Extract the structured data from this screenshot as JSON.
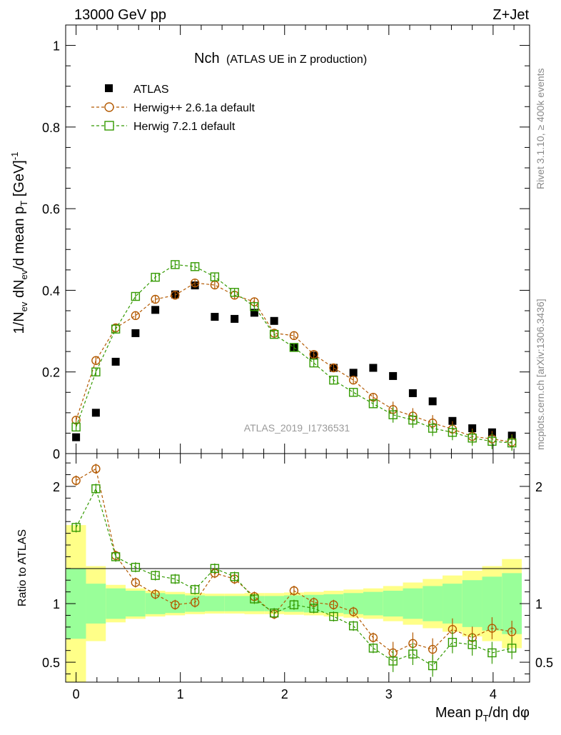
{
  "header": {
    "left": "13000 GeV pp",
    "right": "Z+Jet"
  },
  "side_texts": {
    "rivet": "Rivet 3.1.10, ≥ 400k events",
    "mcplots": "mcplots.cern.ch [arXiv:1306.3436]"
  },
  "chart_data": [
    {
      "type": "scatter",
      "panel": "main",
      "title_main": "Nch",
      "title_sub": "(ATLAS UE in Z production)",
      "ylabel_parts": [
        "1/N",
        "ev",
        " dN",
        "ev",
        "/d mean p",
        "T",
        " [GeV]",
        "-1"
      ],
      "ylim": [
        0,
        1.05
      ],
      "yticks": [
        "0",
        "0.2",
        "0.4",
        "0.6",
        "0.8",
        "1"
      ],
      "xlim": [
        -0.1,
        4.35
      ],
      "x": [
        0.0,
        0.19,
        0.38,
        0.57,
        0.76,
        0.95,
        1.14,
        1.33,
        1.52,
        1.71,
        1.9,
        2.09,
        2.28,
        2.47,
        2.66,
        2.85,
        3.04,
        3.23,
        3.42,
        3.61,
        3.8,
        3.99,
        4.18
      ],
      "legend": [
        "ATLAS",
        "Herwig++ 2.6.1a default",
        "Herwig 7.2.1 default"
      ],
      "series": [
        {
          "name": "ATLAS",
          "color": "#000000",
          "marker": "square-filled",
          "values": [
            0.04,
            0.1,
            0.225,
            0.295,
            0.352,
            0.39,
            0.412,
            0.335,
            0.33,
            0.345,
            0.325,
            0.26,
            0.24,
            0.21,
            0.198,
            0.21,
            0.19,
            0.148,
            0.128,
            0.08,
            0.062,
            0.052,
            0.044
          ]
        },
        {
          "name": "Herwig++ 2.6.1a default",
          "color": "#b35900",
          "marker": "circle-open",
          "values": [
            0.082,
            0.228,
            0.308,
            0.338,
            0.378,
            0.388,
            0.418,
            0.413,
            0.388,
            0.372,
            0.295,
            0.289,
            0.243,
            0.21,
            0.18,
            0.138,
            0.108,
            0.092,
            0.075,
            0.06,
            0.042,
            0.036,
            0.028
          ]
        },
        {
          "name": "Herwig 7.2.1 default",
          "color": "#339900",
          "marker": "square-open",
          "values": [
            0.065,
            0.2,
            0.305,
            0.385,
            0.432,
            0.463,
            0.458,
            0.433,
            0.395,
            0.36,
            0.292,
            0.26,
            0.222,
            0.18,
            0.15,
            0.122,
            0.095,
            0.082,
            0.062,
            0.052,
            0.038,
            0.03,
            0.026
          ]
        }
      ],
      "annotation": "ATLAS_2019_I1736531"
    },
    {
      "type": "scatter",
      "panel": "ratio",
      "ylabel": "Ratio to ATLAS",
      "ylim": [
        0.33,
        2.28
      ],
      "yticks": [
        "0.5",
        "1",
        "2"
      ],
      "xlabel_parts": [
        "Mean p",
        "T",
        "/dη dφ"
      ],
      "xticks": [
        "0",
        "1",
        "2",
        "3",
        "4"
      ],
      "band_inner": [
        0.3,
        0.17,
        0.13,
        0.11,
        0.09,
        0.08,
        0.07,
        0.065,
        0.065,
        0.065,
        0.065,
        0.07,
        0.075,
        0.08,
        0.09,
        0.1,
        0.11,
        0.13,
        0.15,
        0.17,
        0.2,
        0.23,
        0.26
      ],
      "band_outer": [
        0.67,
        0.32,
        0.16,
        0.13,
        0.11,
        0.1,
        0.09,
        0.085,
        0.085,
        0.09,
        0.09,
        0.095,
        0.1,
        0.11,
        0.12,
        0.13,
        0.15,
        0.18,
        0.21,
        0.24,
        0.28,
        0.32,
        0.38
      ],
      "series": [
        {
          "name": "Herwig++ 2.6.1a default",
          "color": "#b35900",
          "marker": "circle-open",
          "values": [
            2.05,
            2.15,
            1.41,
            1.18,
            1.08,
            0.99,
            1.01,
            1.26,
            1.21,
            1.06,
            0.91,
            1.11,
            1.01,
            0.99,
            0.93,
            0.71,
            0.58,
            0.66,
            0.61,
            0.78,
            0.71,
            0.79,
            0.76
          ]
        },
        {
          "name": "Herwig 7.2.1 default",
          "color": "#339900",
          "marker": "square-open",
          "values": [
            1.65,
            1.98,
            1.4,
            1.31,
            1.24,
            1.21,
            1.12,
            1.3,
            1.23,
            1.04,
            0.92,
            0.99,
            0.96,
            0.89,
            0.81,
            0.62,
            0.51,
            0.57,
            0.47,
            0.67,
            0.65,
            0.58,
            0.62
          ]
        }
      ]
    }
  ]
}
